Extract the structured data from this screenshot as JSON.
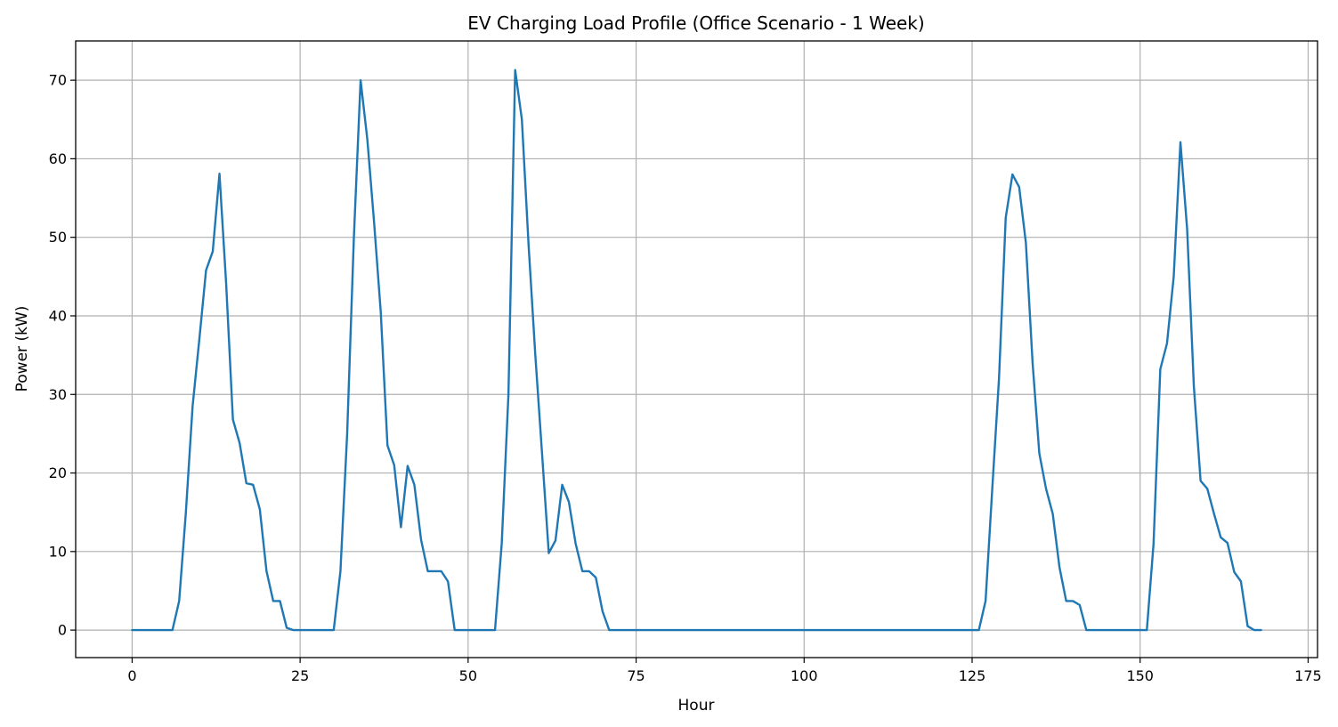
{
  "chart_data": {
    "type": "line",
    "title": "EV Charging Load Profile (Office Scenario - 1 Week)",
    "xlabel": "Hour",
    "ylabel": "Power (kW)",
    "xlim": [
      -8.4,
      176.4
    ],
    "ylim": [
      -3.5,
      75
    ],
    "xticks": [
      0,
      25,
      50,
      75,
      100,
      125,
      150,
      175
    ],
    "yticks": [
      0,
      10,
      20,
      30,
      40,
      50,
      60,
      70
    ],
    "grid": true,
    "legend": "none",
    "colors": {
      "series": "#1f77b4",
      "grid": "#b0b0b0",
      "axis": "#000000"
    },
    "series": [
      {
        "x": [
          0,
          1,
          2,
          3,
          4,
          5,
          6,
          7,
          8,
          9,
          10,
          11,
          12,
          13,
          14,
          15,
          16,
          17,
          18,
          19,
          20,
          21,
          22,
          23,
          24,
          25,
          26,
          27,
          28,
          29,
          30,
          31,
          32,
          33,
          34,
          35,
          36,
          37,
          38,
          39,
          40,
          41,
          42,
          43,
          44,
          45,
          46,
          47,
          48,
          49,
          50,
          51,
          52,
          53,
          54,
          55,
          56,
          57,
          58,
          59,
          60,
          61,
          62,
          63,
          64,
          65,
          66,
          67,
          68,
          69,
          70,
          71,
          72,
          73,
          74,
          75,
          76,
          77,
          78,
          79,
          80,
          81,
          82,
          83,
          84,
          85,
          86,
          87,
          88,
          89,
          90,
          91,
          92,
          93,
          94,
          95,
          96,
          97,
          98,
          99,
          100,
          101,
          102,
          103,
          104,
          105,
          106,
          107,
          108,
          109,
          110,
          111,
          112,
          113,
          114,
          115,
          116,
          117,
          118,
          119,
          120,
          121,
          122,
          123,
          124,
          125,
          126,
          127,
          128,
          129,
          130,
          131,
          132,
          133,
          134,
          135,
          136,
          137,
          138,
          139,
          140,
          141,
          142,
          143,
          144,
          145,
          146,
          147,
          148,
          149,
          150,
          151,
          152,
          153,
          154,
          155,
          156,
          157,
          158,
          159,
          160,
          161,
          162,
          163,
          164,
          165,
          166,
          167,
          168
        ],
        "y": [
          0,
          0,
          0,
          0,
          0,
          0,
          0,
          3.7,
          15,
          28.5,
          37,
          45.8,
          48.2,
          58.1,
          44,
          26.8,
          23.8,
          18.7,
          18.5,
          15.4,
          7.5,
          3.7,
          3.7,
          0.3,
          0,
          0,
          0,
          0,
          0,
          0,
          0,
          7.5,
          25,
          50,
          70,
          62.5,
          52,
          40.5,
          23.5,
          21,
          13.1,
          20.9,
          18.5,
          11.5,
          7.5,
          7.5,
          7.5,
          6.2,
          0,
          0,
          0,
          0,
          0,
          0,
          0,
          11,
          30,
          71.3,
          65,
          49,
          35,
          22.5,
          9.8,
          11.4,
          18.5,
          16.3,
          11,
          7.5,
          7.5,
          6.7,
          2.4,
          0,
          0,
          0,
          0,
          0,
          0,
          0,
          0,
          0,
          0,
          0,
          0,
          0,
          0,
          0,
          0,
          0,
          0,
          0,
          0,
          0,
          0,
          0,
          0,
          0,
          0,
          0,
          0,
          0,
          0,
          0,
          0,
          0,
          0,
          0,
          0,
          0,
          0,
          0,
          0,
          0,
          0,
          0,
          0,
          0,
          0,
          0,
          0,
          0,
          0,
          0,
          0,
          0,
          0,
          0,
          0,
          3.7,
          18,
          32,
          52.5,
          58,
          56.4,
          49.3,
          34,
          22.5,
          18,
          14.8,
          8,
          3.7,
          3.7,
          3.2,
          0,
          0,
          0,
          0,
          0,
          0,
          0,
          0,
          0,
          0,
          11,
          33.2,
          36.5,
          45,
          62.1,
          51,
          31,
          19,
          18,
          14.8,
          11.8,
          11.1,
          7.4,
          6.2,
          0.5,
          0,
          0
        ]
      }
    ]
  }
}
